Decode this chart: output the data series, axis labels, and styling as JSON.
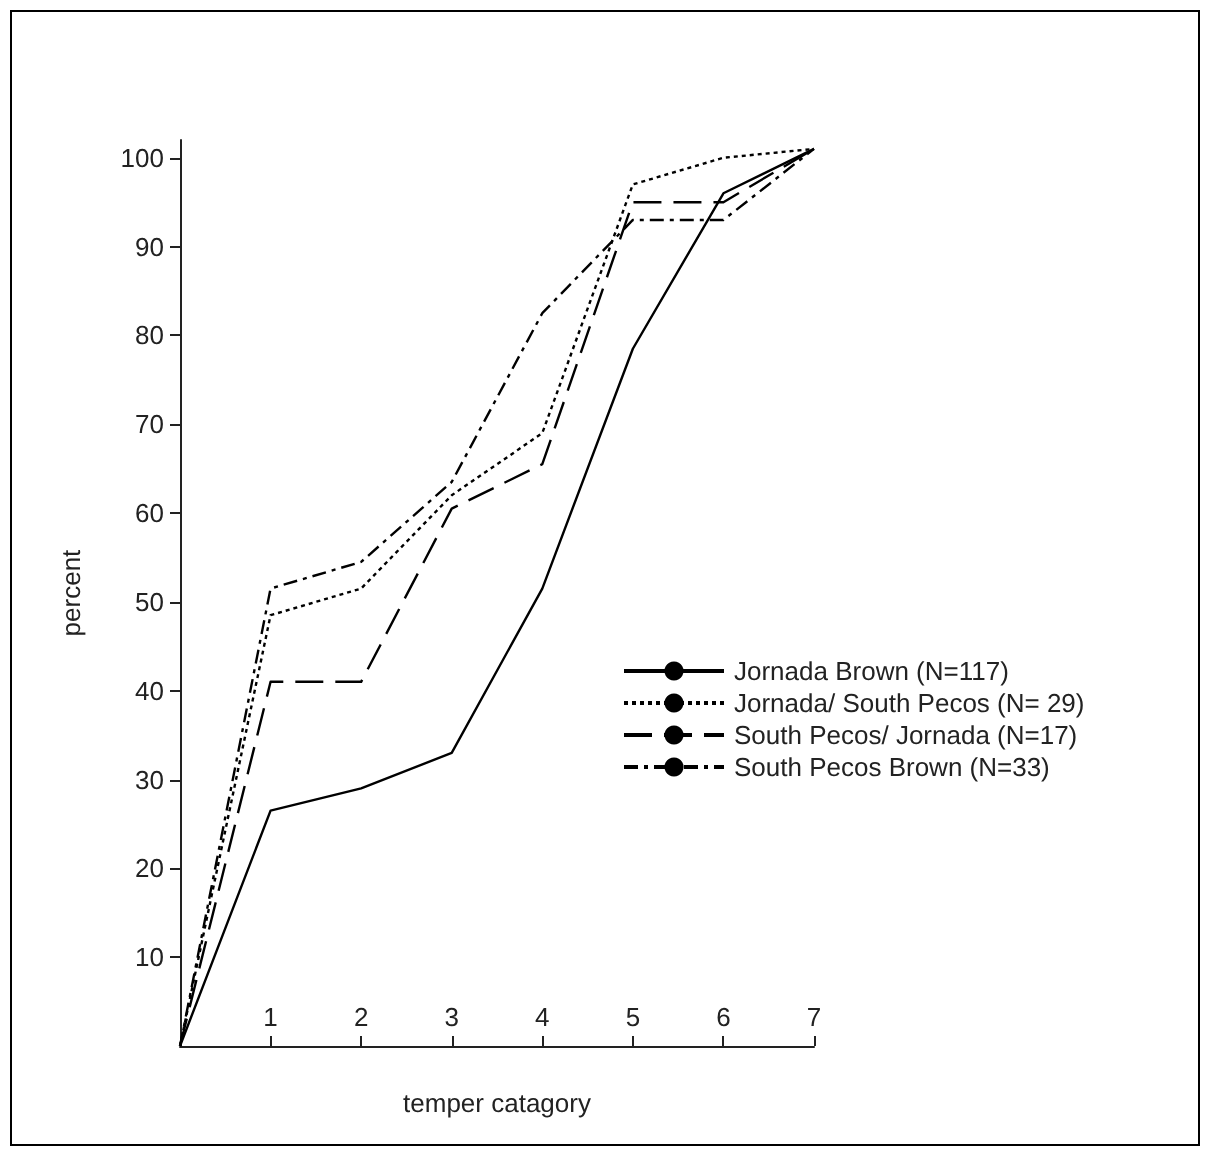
{
  "chart_data": {
    "type": "line",
    "xlabel": "temper catagory",
    "ylabel": "percent",
    "x": [
      0,
      1,
      2,
      3,
      4,
      5,
      6,
      7
    ],
    "series": [
      {
        "name": "Jornada Brown (N=117)",
        "color": "#000000",
        "line_style": "solid",
        "values": [
          0,
          26.5,
          29,
          33,
          51.5,
          78.5,
          96,
          101
        ]
      },
      {
        "name": "Jornada/ South Pecos (N= 29)",
        "color": "#000000",
        "line_style": "dotted",
        "values": [
          0,
          48.5,
          51.5,
          62,
          69,
          97,
          100,
          101
        ]
      },
      {
        "name": "South Pecos/ Jornada (N=17)",
        "color": "#000000",
        "line_style": "dashed",
        "values": [
          0,
          41,
          41,
          60.5,
          65.5,
          95,
          95,
          101
        ]
      },
      {
        "name": "South Pecos Brown (N=33)",
        "color": "#000000",
        "line_style": "dashdot",
        "values": [
          0,
          51.5,
          54.5,
          63.5,
          82.5,
          93,
          93,
          101
        ]
      }
    ],
    "xlim": [
      0,
      7
    ],
    "ylim": [
      0,
      102
    ],
    "xticks": [
      1,
      2,
      3,
      4,
      5,
      6,
      7
    ],
    "yticks": [
      10,
      20,
      30,
      40,
      50,
      60,
      70,
      80,
      90,
      100
    ],
    "marker": "none",
    "grid": false,
    "legend": "right"
  }
}
